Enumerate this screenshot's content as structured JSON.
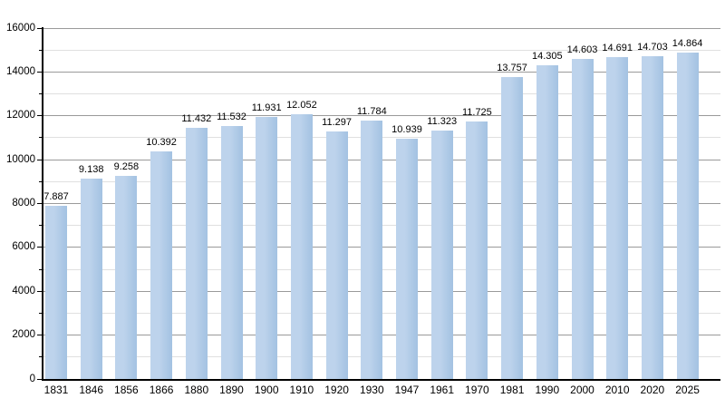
{
  "chart_data": {
    "type": "bar",
    "title": "",
    "xlabel": "",
    "ylabel": "",
    "grid": "on",
    "legend": "none",
    "categories": [
      "1831",
      "1846",
      "1856",
      "1866",
      "1880",
      "1890",
      "1900",
      "1910",
      "1920",
      "1930",
      "1947",
      "1961",
      "1970",
      "1981",
      "1990",
      "2000",
      "2010",
      "2020",
      "2025"
    ],
    "values": [
      7887,
      9138,
      9258,
      10392,
      11432,
      11532,
      11931,
      12052,
      11297,
      11784,
      10939,
      11323,
      11725,
      13757,
      14305,
      14603,
      14691,
      14703,
      14864
    ],
    "value_labels": [
      "7.887",
      "9.138",
      "9.258",
      "10.392",
      "11.432",
      "11.532",
      "11.931",
      "12.052",
      "11.297",
      "11.784",
      "10.939",
      "11.323",
      "11.725",
      "13.757",
      "14.305",
      "14.603",
      "14.691",
      "14.703",
      "14.864"
    ],
    "ylim": [
      0,
      16000
    ],
    "y_ticks": [
      0,
      2000,
      4000,
      6000,
      8000,
      10000,
      12000,
      14000,
      16000
    ],
    "y_minor_step": 1000,
    "colors": {
      "bar_light": "#bdd3ec",
      "bar_dark": "#a3c2e2",
      "major_grid": "#9a9a9a",
      "minor_grid": "#e0e0e0",
      "axis": "#000000",
      "text": "#000000",
      "background": "#ffffff"
    }
  }
}
